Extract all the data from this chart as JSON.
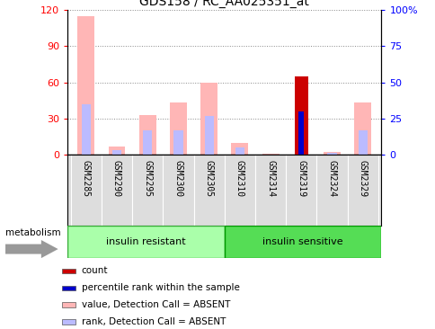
{
  "title": "GDS158 / RC_AA025351_at",
  "samples": [
    "GSM2285",
    "GSM2290",
    "GSM2295",
    "GSM2300",
    "GSM2305",
    "GSM2310",
    "GSM2314",
    "GSM2319",
    "GSM2324",
    "GSM2329"
  ],
  "pink_values": [
    115,
    7,
    33,
    43,
    60,
    10,
    0.5,
    0,
    2,
    43
  ],
  "blue_ranks": [
    35,
    3,
    17,
    17,
    27,
    5,
    0,
    0,
    1,
    17
  ],
  "red_count": [
    0,
    0,
    0,
    0,
    0,
    0,
    0,
    65,
    0,
    0
  ],
  "blue_count": [
    0,
    0,
    0,
    0,
    0,
    0,
    0,
    30,
    0,
    0
  ],
  "ylim_left": [
    0,
    120
  ],
  "ylim_right": [
    0,
    100
  ],
  "yticks_left": [
    0,
    30,
    60,
    90,
    120
  ],
  "yticks_right": [
    0,
    25,
    50,
    75,
    100
  ],
  "ytick_labels_right": [
    "0",
    "25",
    "50",
    "75",
    "100%"
  ],
  "color_pink": "#FFB6B6",
  "color_blue_rank": "#BBBBFF",
  "color_red": "#CC0000",
  "color_blue_count": "#0000CC",
  "group1_label": "insulin resistant",
  "group2_label": "insulin sensitive",
  "group1_color": "#AAFFAA",
  "group2_color": "#55DD55",
  "metabolism_label": "metabolism",
  "legend_items": [
    {
      "label": "count",
      "color": "#CC0000"
    },
    {
      "label": "percentile rank within the sample",
      "color": "#0000CC"
    },
    {
      "label": "value, Detection Call = ABSENT",
      "color": "#FFB6B6"
    },
    {
      "label": "rank, Detection Call = ABSENT",
      "color": "#BBBBFF"
    }
  ],
  "background_color": "#FFFFFF",
  "plot_bg": "#FFFFFF",
  "xlabel_area_color": "#DDDDDD",
  "grid_color": "#888888"
}
